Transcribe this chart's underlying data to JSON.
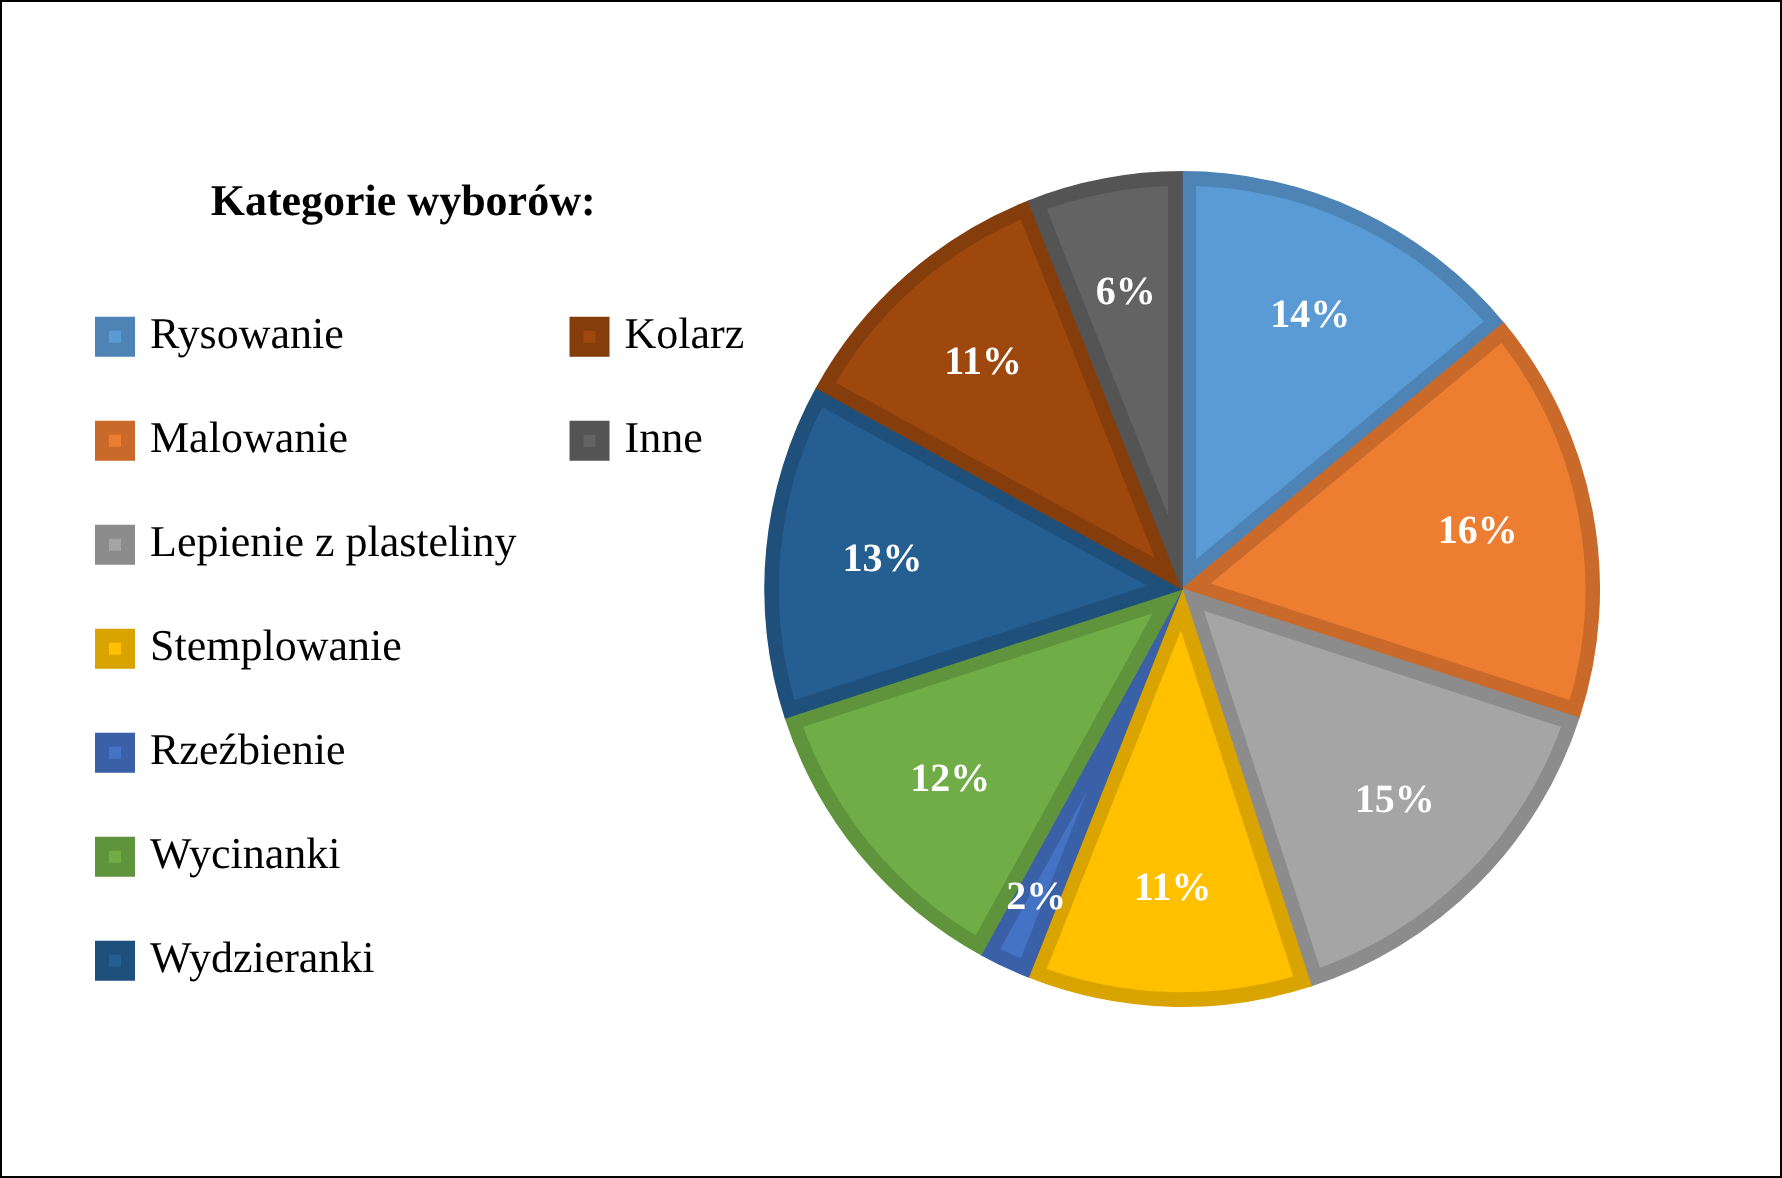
{
  "chart_data": {
    "type": "pie",
    "legend_title": "Kategorie wyborów:",
    "legend": "left",
    "categories": [
      "Rysowanie",
      "Malowanie",
      "Lepienie z plasteliny",
      "Stemplowanie",
      "Rzeźbienie",
      "Wycinanki",
      "Wydzieranki",
      "Kolarz",
      "Inne"
    ],
    "values": [
      14,
      16,
      15,
      11,
      2,
      12,
      13,
      11,
      6
    ],
    "colors": [
      "#5b9bd5",
      "#ed7d31",
      "#a5a5a5",
      "#ffc000",
      "#4472c4",
      "#70ad47",
      "#255e91",
      "#9e480e",
      "#636363"
    ],
    "value_labels": [
      "14%",
      "16%",
      "15%",
      "11%",
      "2%",
      "12%",
      "13%",
      "11%",
      "6%"
    ]
  }
}
